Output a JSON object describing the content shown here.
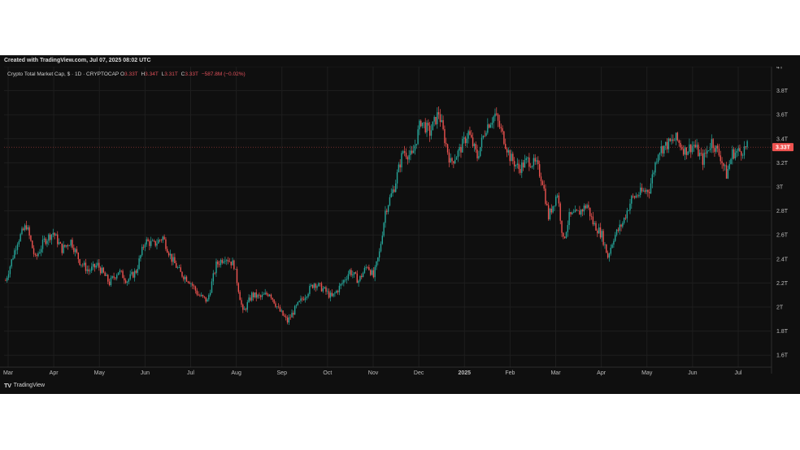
{
  "header": {
    "created": "Created with TradingView.com, Jul 07, 2025 08:02 UTC"
  },
  "legend": {
    "symbol": "Crypto Total Market Cap, $ · 1D · CRYPTOCAP",
    "o_label": "O",
    "o_value": "3.33T",
    "h_label": "H",
    "h_value": "3.34T",
    "l_label": "L",
    "l_value": "3.31T",
    "c_label": "C",
    "c_value": "3.33T",
    "change": "−587.8M (−0.02%)"
  },
  "footer": {
    "logo": "TV",
    "brand": "TradingView"
  },
  "colors": {
    "up": "#26a69a",
    "down": "#ef5350",
    "background": "#0f0f0f",
    "grid": "#1e1e1e",
    "price_tag": "#ef5350"
  },
  "chart_data": {
    "type": "candlestick",
    "title": "Crypto Total Market Cap, $ · 1D · CRYPTOCAP",
    "y_axis": {
      "min": 1.5,
      "max": 4.0,
      "unit": "T",
      "ticks": [
        "4T",
        "3.8T",
        "3.6T",
        "3.4T",
        "3.2T",
        "3T",
        "2.8T",
        "2.6T",
        "2.4T",
        "2.2T",
        "2T",
        "1.8T",
        "1.6T"
      ],
      "tick_values": [
        4.0,
        3.8,
        3.6,
        3.4,
        3.2,
        3.0,
        2.8,
        2.6,
        2.4,
        2.2,
        2.0,
        1.8,
        1.6
      ]
    },
    "x_axis": {
      "ticks": [
        "Mar",
        "Apr",
        "May",
        "Jun",
        "Jul",
        "Aug",
        "Sep",
        "Oct",
        "Nov",
        "Dec",
        "2025",
        "Feb",
        "Mar",
        "Apr",
        "May",
        "Jun",
        "Jul"
      ]
    },
    "last_price": "3.33T",
    "last_value": 3.33,
    "grid": true,
    "close_path_anchors": [
      {
        "d": 0,
        "v": 2.22
      },
      {
        "d": 8,
        "v": 2.55
      },
      {
        "d": 14,
        "v": 2.68
      },
      {
        "d": 20,
        "v": 2.4
      },
      {
        "d": 26,
        "v": 2.55
      },
      {
        "d": 32,
        "v": 2.62
      },
      {
        "d": 38,
        "v": 2.48
      },
      {
        "d": 44,
        "v": 2.55
      },
      {
        "d": 50,
        "v": 2.38
      },
      {
        "d": 56,
        "v": 2.3
      },
      {
        "d": 62,
        "v": 2.35
      },
      {
        "d": 70,
        "v": 2.2
      },
      {
        "d": 76,
        "v": 2.3
      },
      {
        "d": 82,
        "v": 2.22
      },
      {
        "d": 88,
        "v": 2.3
      },
      {
        "d": 94,
        "v": 2.55
      },
      {
        "d": 100,
        "v": 2.52
      },
      {
        "d": 106,
        "v": 2.58
      },
      {
        "d": 112,
        "v": 2.4
      },
      {
        "d": 118,
        "v": 2.28
      },
      {
        "d": 124,
        "v": 2.22
      },
      {
        "d": 130,
        "v": 2.1
      },
      {
        "d": 136,
        "v": 2.05
      },
      {
        "d": 142,
        "v": 2.35
      },
      {
        "d": 148,
        "v": 2.42
      },
      {
        "d": 154,
        "v": 2.35
      },
      {
        "d": 160,
        "v": 1.95
      },
      {
        "d": 166,
        "v": 2.1
      },
      {
        "d": 172,
        "v": 2.08
      },
      {
        "d": 178,
        "v": 2.12
      },
      {
        "d": 184,
        "v": 1.98
      },
      {
        "d": 190,
        "v": 1.88
      },
      {
        "d": 196,
        "v": 2.0
      },
      {
        "d": 202,
        "v": 2.1
      },
      {
        "d": 208,
        "v": 2.2
      },
      {
        "d": 214,
        "v": 2.15
      },
      {
        "d": 220,
        "v": 2.08
      },
      {
        "d": 226,
        "v": 2.18
      },
      {
        "d": 232,
        "v": 2.3
      },
      {
        "d": 238,
        "v": 2.22
      },
      {
        "d": 244,
        "v": 2.35
      },
      {
        "d": 248,
        "v": 2.25
      },
      {
        "d": 252,
        "v": 2.45
      },
      {
        "d": 256,
        "v": 2.8
      },
      {
        "d": 262,
        "v": 3.0
      },
      {
        "d": 268,
        "v": 3.3
      },
      {
        "d": 274,
        "v": 3.25
      },
      {
        "d": 280,
        "v": 3.55
      },
      {
        "d": 286,
        "v": 3.45
      },
      {
        "d": 292,
        "v": 3.62
      },
      {
        "d": 296,
        "v": 3.4
      },
      {
        "d": 300,
        "v": 3.2
      },
      {
        "d": 306,
        "v": 3.3
      },
      {
        "d": 312,
        "v": 3.45
      },
      {
        "d": 318,
        "v": 3.25
      },
      {
        "d": 324,
        "v": 3.5
      },
      {
        "d": 330,
        "v": 3.6
      },
      {
        "d": 336,
        "v": 3.4
      },
      {
        "d": 340,
        "v": 3.25
      },
      {
        "d": 346,
        "v": 3.15
      },
      {
        "d": 352,
        "v": 3.22
      },
      {
        "d": 358,
        "v": 3.18
      },
      {
        "d": 362,
        "v": 3.05
      },
      {
        "d": 366,
        "v": 2.75
      },
      {
        "d": 372,
        "v": 2.95
      },
      {
        "d": 376,
        "v": 2.55
      },
      {
        "d": 380,
        "v": 2.75
      },
      {
        "d": 386,
        "v": 2.78
      },
      {
        "d": 392,
        "v": 2.85
      },
      {
        "d": 396,
        "v": 2.7
      },
      {
        "d": 402,
        "v": 2.6
      },
      {
        "d": 406,
        "v": 2.42
      },
      {
        "d": 410,
        "v": 2.58
      },
      {
        "d": 416,
        "v": 2.7
      },
      {
        "d": 422,
        "v": 2.9
      },
      {
        "d": 428,
        "v": 2.95
      },
      {
        "d": 434,
        "v": 2.98
      },
      {
        "d": 440,
        "v": 3.3
      },
      {
        "d": 446,
        "v": 3.35
      },
      {
        "d": 452,
        "v": 3.4
      },
      {
        "d": 458,
        "v": 3.3
      },
      {
        "d": 464,
        "v": 3.35
      },
      {
        "d": 470,
        "v": 3.22
      },
      {
        "d": 476,
        "v": 3.38
      },
      {
        "d": 482,
        "v": 3.25
      },
      {
        "d": 486,
        "v": 3.1
      },
      {
        "d": 490,
        "v": 3.28
      },
      {
        "d": 496,
        "v": 3.3
      },
      {
        "d": 500,
        "v": 3.33
      }
    ]
  }
}
